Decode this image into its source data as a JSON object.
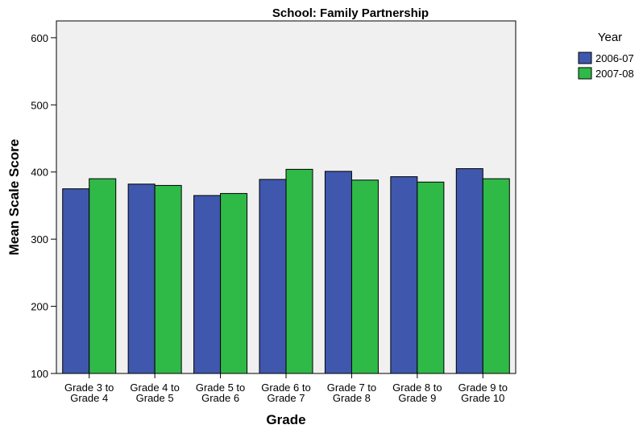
{
  "chart_data": {
    "type": "bar",
    "title": "School: Family Partnership",
    "xlabel": "Grade",
    "ylabel": "Mean Scale Score",
    "categories": [
      [
        "Grade 3 to",
        "Grade 4"
      ],
      [
        "Grade 4 to",
        "Grade 5"
      ],
      [
        "Grade 5 to",
        "Grade 6"
      ],
      [
        "Grade 6 to",
        "Grade 7"
      ],
      [
        "Grade 7 to",
        "Grade 8"
      ],
      [
        "Grade 8 to",
        "Grade 9"
      ],
      [
        "Grade 9 to",
        "Grade 10"
      ]
    ],
    "series": [
      {
        "name": "2006-07",
        "color": "#3f58ad",
        "values": [
          375,
          382,
          365,
          389,
          401,
          393,
          405
        ]
      },
      {
        "name": "2007-08",
        "color": "#2fba48",
        "values": [
          390,
          380,
          368,
          404,
          388,
          385,
          390
        ]
      }
    ],
    "ylim": [
      100,
      625
    ],
    "yticks": [
      100,
      200,
      300,
      400,
      500,
      600
    ],
    "legend": {
      "title": "Year",
      "placement": "top-right"
    },
    "grid": false,
    "plot_background": "#f0f0f0"
  }
}
